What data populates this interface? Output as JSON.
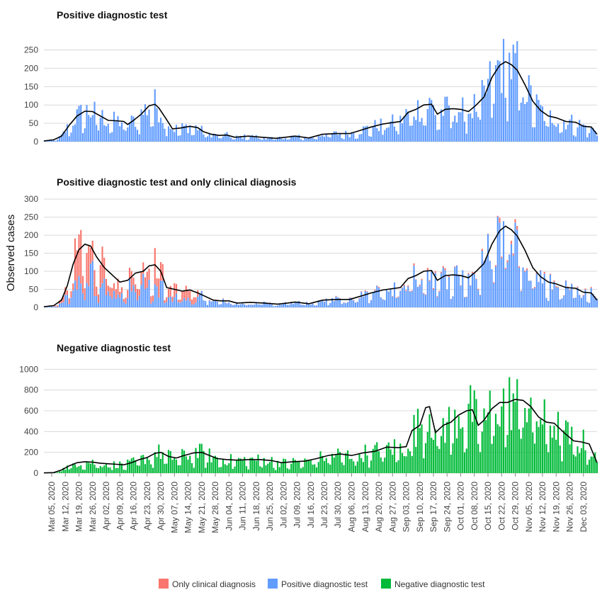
{
  "y_axis_label": "Observed cases",
  "colors": {
    "clinical": "#F8766D",
    "positive": "#619CFF",
    "negative": "#00BA38",
    "trend": "#000000"
  },
  "legend": [
    {
      "label": "Only clinical diagnosis",
      "color": "#F8766D"
    },
    {
      "label": "Positive diagnostic test",
      "color": "#619CFF"
    },
    {
      "label": "Negative diagnostic test",
      "color": "#00BA38"
    }
  ],
  "chart_data": {
    "type": "bar",
    "x_start": "2020-03-01",
    "x_end": "2020-12-10",
    "x_ticks": [
      "Mar 05, 2020",
      "Mar 12, 2020",
      "Mar 19, 2020",
      "Mar 26, 2020",
      "Apr 02, 2020",
      "Apr 09, 2020",
      "Apr 16, 2020",
      "Apr 23, 2020",
      "Apr 30, 2020",
      "May 07, 2020",
      "May 14, 2020",
      "May 21, 2020",
      "May 28, 2020",
      "Jun 04, 2020",
      "Jun 11, 2020",
      "Jun 18, 2020",
      "Jun 25, 2020",
      "Jul 02, 2020",
      "Jul 09, 2020",
      "Jul 16, 2020",
      "Jul 23, 2020",
      "Jul 30, 2020",
      "Aug 06, 2020",
      "Aug 13, 2020",
      "Aug 20, 2020",
      "Aug 27, 2020",
      "Sep 03, 2020",
      "Sep 10, 2020",
      "Sep 17, 2020",
      "Sep 24, 2020",
      "Oct 01, 2020",
      "Oct 08, 2020",
      "Oct 15, 2020",
      "Oct 22, 2020",
      "Oct 29, 2020",
      "Nov 05, 2020",
      "Nov 12, 2020",
      "Nov 19, 2020",
      "Nov 26, 2020",
      "Dec 03, 2020"
    ],
    "panels": [
      {
        "title": "Positive diagnostic test",
        "ylim": [
          0,
          280
        ],
        "yticks": [
          0,
          50,
          100,
          150,
          200,
          250
        ],
        "series": [
          "positive"
        ],
        "trend_points": [
          [
            "2020-03-01",
            2
          ],
          [
            "2020-03-06",
            5
          ],
          [
            "2020-03-10",
            15
          ],
          [
            "2020-03-14",
            45
          ],
          [
            "2020-03-18",
            70
          ],
          [
            "2020-03-22",
            83
          ],
          [
            "2020-03-26",
            82
          ],
          [
            "2020-03-30",
            70
          ],
          [
            "2020-04-03",
            58
          ],
          [
            "2020-04-07",
            57
          ],
          [
            "2020-04-11",
            55
          ],
          [
            "2020-04-13",
            47
          ],
          [
            "2020-04-16",
            58
          ],
          [
            "2020-04-20",
            75
          ],
          [
            "2020-04-24",
            98
          ],
          [
            "2020-04-27",
            102
          ],
          [
            "2020-04-29",
            92
          ],
          [
            "2020-05-03",
            60
          ],
          [
            "2020-05-06",
            35
          ],
          [
            "2020-05-10",
            37
          ],
          [
            "2020-05-15",
            42
          ],
          [
            "2020-05-19",
            38
          ],
          [
            "2020-05-22",
            27
          ],
          [
            "2020-05-26",
            20
          ],
          [
            "2020-05-30",
            17
          ],
          [
            "2020-06-03",
            18
          ],
          [
            "2020-06-07",
            12
          ],
          [
            "2020-06-14",
            15
          ],
          [
            "2020-06-21",
            12
          ],
          [
            "2020-06-28",
            9
          ],
          [
            "2020-07-03",
            12
          ],
          [
            "2020-07-08",
            15
          ],
          [
            "2020-07-15",
            10
          ],
          [
            "2020-07-22",
            20
          ],
          [
            "2020-07-29",
            22
          ],
          [
            "2020-08-05",
            22
          ],
          [
            "2020-08-10",
            30
          ],
          [
            "2020-08-16",
            40
          ],
          [
            "2020-08-22",
            48
          ],
          [
            "2020-08-27",
            52
          ],
          [
            "2020-08-31",
            55
          ],
          [
            "2020-09-04",
            80
          ],
          [
            "2020-09-08",
            88
          ],
          [
            "2020-09-12",
            100
          ],
          [
            "2020-09-16",
            102
          ],
          [
            "2020-09-19",
            75
          ],
          [
            "2020-09-23",
            88
          ],
          [
            "2020-09-27",
            90
          ],
          [
            "2020-10-01",
            88
          ],
          [
            "2020-10-05",
            82
          ],
          [
            "2020-10-09",
            100
          ],
          [
            "2020-10-13",
            122
          ],
          [
            "2020-10-17",
            175
          ],
          [
            "2020-10-21",
            208
          ],
          [
            "2020-10-24",
            218
          ],
          [
            "2020-10-27",
            210
          ],
          [
            "2020-10-30",
            195
          ],
          [
            "2020-11-03",
            155
          ],
          [
            "2020-11-07",
            110
          ],
          [
            "2020-11-11",
            85
          ],
          [
            "2020-11-15",
            70
          ],
          [
            "2020-11-19",
            65
          ],
          [
            "2020-11-24",
            55
          ],
          [
            "2020-11-29",
            53
          ],
          [
            "2020-12-03",
            42
          ],
          [
            "2020-12-07",
            40
          ],
          [
            "2020-12-10",
            20
          ]
        ]
      },
      {
        "title": "Positive diagnostic test and only clinical diagnosis",
        "ylim": [
          0,
          310
        ],
        "yticks": [
          0,
          50,
          100,
          150,
          200,
          250,
          300
        ],
        "series": [
          "positive",
          "clinical"
        ],
        "trend_points": [
          [
            "2020-03-01",
            2
          ],
          [
            "2020-03-06",
            5
          ],
          [
            "2020-03-10",
            20
          ],
          [
            "2020-03-13",
            60
          ],
          [
            "2020-03-16",
            120
          ],
          [
            "2020-03-19",
            160
          ],
          [
            "2020-03-22",
            175
          ],
          [
            "2020-03-25",
            170
          ],
          [
            "2020-03-28",
            140
          ],
          [
            "2020-04-01",
            110
          ],
          [
            "2020-04-05",
            90
          ],
          [
            "2020-04-09",
            70
          ],
          [
            "2020-04-13",
            75
          ],
          [
            "2020-04-17",
            95
          ],
          [
            "2020-04-21",
            100
          ],
          [
            "2020-04-24",
            115
          ],
          [
            "2020-04-27",
            118
          ],
          [
            "2020-04-30",
            100
          ],
          [
            "2020-05-03",
            55
          ],
          [
            "2020-05-07",
            50
          ],
          [
            "2020-05-11",
            45
          ],
          [
            "2020-05-15",
            48
          ],
          [
            "2020-05-19",
            40
          ],
          [
            "2020-05-23",
            30
          ],
          [
            "2020-05-27",
            20
          ],
          [
            "2020-05-31",
            18
          ],
          [
            "2020-06-04",
            18
          ],
          [
            "2020-06-08",
            12
          ],
          [
            "2020-06-15",
            14
          ],
          [
            "2020-06-22",
            12
          ],
          [
            "2020-06-29",
            9
          ],
          [
            "2020-07-04",
            12
          ],
          [
            "2020-07-08",
            15
          ],
          [
            "2020-07-15",
            10
          ],
          [
            "2020-07-22",
            20
          ],
          [
            "2020-07-29",
            22
          ],
          [
            "2020-08-05",
            22
          ],
          [
            "2020-08-10",
            30
          ],
          [
            "2020-08-16",
            40
          ],
          [
            "2020-08-22",
            48
          ],
          [
            "2020-08-27",
            52
          ],
          [
            "2020-08-31",
            55
          ],
          [
            "2020-09-04",
            80
          ],
          [
            "2020-09-08",
            88
          ],
          [
            "2020-09-12",
            100
          ],
          [
            "2020-09-16",
            102
          ],
          [
            "2020-09-19",
            75
          ],
          [
            "2020-09-23",
            88
          ],
          [
            "2020-09-27",
            90
          ],
          [
            "2020-10-01",
            88
          ],
          [
            "2020-10-05",
            82
          ],
          [
            "2020-10-09",
            100
          ],
          [
            "2020-10-13",
            122
          ],
          [
            "2020-10-17",
            175
          ],
          [
            "2020-10-21",
            212
          ],
          [
            "2020-10-24",
            225
          ],
          [
            "2020-10-27",
            215
          ],
          [
            "2020-10-30",
            198
          ],
          [
            "2020-11-03",
            158
          ],
          [
            "2020-11-07",
            110
          ],
          [
            "2020-11-11",
            85
          ],
          [
            "2020-11-15",
            70
          ],
          [
            "2020-11-19",
            65
          ],
          [
            "2020-11-24",
            55
          ],
          [
            "2020-11-29",
            53
          ],
          [
            "2020-12-03",
            42
          ],
          [
            "2020-12-07",
            40
          ],
          [
            "2020-12-10",
            20
          ]
        ]
      },
      {
        "title": "Negative diagnostic test",
        "ylim": [
          0,
          1050
        ],
        "yticks": [
          0,
          200,
          400,
          600,
          800,
          1000
        ],
        "series": [
          "negative"
        ],
        "trend_points": [
          [
            "2020-03-01",
            2
          ],
          [
            "2020-03-06",
            5
          ],
          [
            "2020-03-10",
            30
          ],
          [
            "2020-03-14",
            70
          ],
          [
            "2020-03-18",
            100
          ],
          [
            "2020-03-22",
            110
          ],
          [
            "2020-03-26",
            105
          ],
          [
            "2020-03-30",
            95
          ],
          [
            "2020-04-03",
            90
          ],
          [
            "2020-04-07",
            85
          ],
          [
            "2020-04-11",
            80
          ],
          [
            "2020-04-15",
            100
          ],
          [
            "2020-04-19",
            130
          ],
          [
            "2020-04-23",
            150
          ],
          [
            "2020-04-27",
            190
          ],
          [
            "2020-04-30",
            200
          ],
          [
            "2020-05-04",
            160
          ],
          [
            "2020-05-08",
            145
          ],
          [
            "2020-05-12",
            170
          ],
          [
            "2020-05-17",
            195
          ],
          [
            "2020-05-21",
            200
          ],
          [
            "2020-05-25",
            170
          ],
          [
            "2020-05-29",
            140
          ],
          [
            "2020-06-03",
            130
          ],
          [
            "2020-06-08",
            125
          ],
          [
            "2020-06-14",
            130
          ],
          [
            "2020-06-20",
            130
          ],
          [
            "2020-06-26",
            120
          ],
          [
            "2020-07-01",
            100
          ],
          [
            "2020-07-07",
            110
          ],
          [
            "2020-07-13",
            115
          ],
          [
            "2020-07-19",
            140
          ],
          [
            "2020-07-25",
            170
          ],
          [
            "2020-07-31",
            185
          ],
          [
            "2020-08-06",
            170
          ],
          [
            "2020-08-12",
            195
          ],
          [
            "2020-08-18",
            210
          ],
          [
            "2020-08-24",
            250
          ],
          [
            "2020-08-30",
            245
          ],
          [
            "2020-09-03",
            255
          ],
          [
            "2020-09-06",
            410
          ],
          [
            "2020-09-10",
            460
          ],
          [
            "2020-09-13",
            630
          ],
          [
            "2020-09-15",
            640
          ],
          [
            "2020-09-18",
            390
          ],
          [
            "2020-09-22",
            460
          ],
          [
            "2020-09-26",
            490
          ],
          [
            "2020-09-30",
            560
          ],
          [
            "2020-10-04",
            600
          ],
          [
            "2020-10-07",
            610
          ],
          [
            "2020-10-10",
            460
          ],
          [
            "2020-10-13",
            510
          ],
          [
            "2020-10-17",
            620
          ],
          [
            "2020-10-21",
            680
          ],
          [
            "2020-10-25",
            680
          ],
          [
            "2020-10-29",
            710
          ],
          [
            "2020-11-02",
            700
          ],
          [
            "2020-11-06",
            640
          ],
          [
            "2020-11-10",
            540
          ],
          [
            "2020-11-14",
            490
          ],
          [
            "2020-11-18",
            480
          ],
          [
            "2020-11-23",
            390
          ],
          [
            "2020-11-28",
            310
          ],
          [
            "2020-12-02",
            300
          ],
          [
            "2020-12-06",
            280
          ],
          [
            "2020-12-10",
            100
          ]
        ]
      }
    ]
  }
}
